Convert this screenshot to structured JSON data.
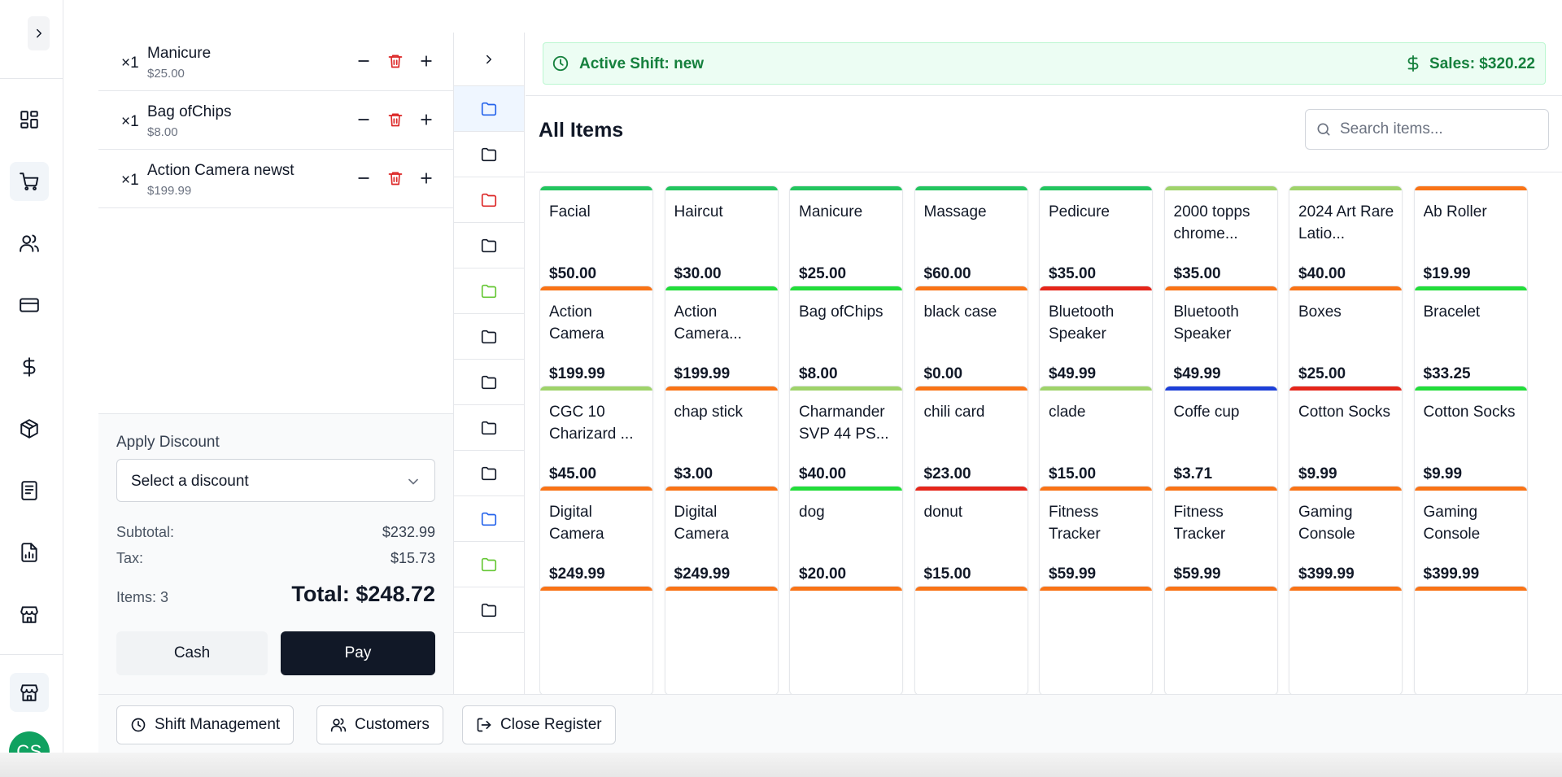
{
  "colors": {
    "accent_dark": "#111827",
    "shift_green": "#15803d",
    "avatar_green": "#10a160",
    "delete_red": "#dc2626"
  },
  "nav": {
    "items": [
      {
        "icon": "dashboard-icon"
      },
      {
        "icon": "shopping-cart-icon",
        "active": true
      },
      {
        "icon": "users-icon"
      },
      {
        "icon": "credit-card-icon"
      },
      {
        "icon": "dollar-icon"
      },
      {
        "icon": "package-icon"
      },
      {
        "icon": "document-icon"
      },
      {
        "icon": "report-icon"
      },
      {
        "icon": "store-icon"
      }
    ],
    "store_icon": "store-icon",
    "avatar_initials": "CS"
  },
  "cart": {
    "items": [
      {
        "qty": "×1",
        "name": "Manicure",
        "price": "$25.00"
      },
      {
        "qty": "×1",
        "name": "Bag ofChips",
        "price": "$8.00"
      },
      {
        "qty": "×1",
        "name": "Action Camera newst",
        "price": "$199.99"
      }
    ]
  },
  "summary": {
    "discount_label": "Apply Discount",
    "discount_select": "Select a discount",
    "subtotal_label": "Subtotal:",
    "subtotal_value": "$232.99",
    "tax_label": "Tax:",
    "tax_value": "$15.73",
    "items_label": "Items: 3",
    "total_label": "Total: $248.72",
    "cash_label": "Cash",
    "pay_label": "Pay"
  },
  "folders": [
    {
      "color": "#2563eb",
      "active": true
    },
    {
      "color": "#111827"
    },
    {
      "color": "#dc2626"
    },
    {
      "color": "#111827"
    },
    {
      "color": "#65c734"
    },
    {
      "color": "#111827"
    },
    {
      "color": "#111827"
    },
    {
      "color": "#111827"
    },
    {
      "color": "#111827"
    },
    {
      "color": "#2563eb"
    },
    {
      "color": "#65c734"
    },
    {
      "color": "#111827"
    }
  ],
  "shift": {
    "active_text": "Active Shift: new",
    "sales_text": "Sales: $320.22"
  },
  "main": {
    "title": "All Items",
    "search_placeholder": "Search items..."
  },
  "products": [
    {
      "name": "Facial",
      "price": "$50.00",
      "color": "#22c55e"
    },
    {
      "name": "Haircut",
      "price": "$30.00",
      "color": "#22c55e"
    },
    {
      "name": "Manicure",
      "price": "$25.00",
      "color": "#22c55e"
    },
    {
      "name": "Massage",
      "price": "$60.00",
      "color": "#22c55e"
    },
    {
      "name": "Pedicure",
      "price": "$35.00",
      "color": "#22c55e"
    },
    {
      "name": "2000 topps chrome...",
      "price": "$35.00",
      "color": "#9fd36a"
    },
    {
      "name": "2024 Art Rare Latio...",
      "price": "$40.00",
      "color": "#9fd36a"
    },
    {
      "name": "Ab Roller",
      "price": "$19.99",
      "color": "#f97316"
    },
    {
      "name": "Action Camera",
      "price": "$199.99",
      "color": "#f97316"
    },
    {
      "name": "Action Camera...",
      "price": "$199.99",
      "color": "#22dd3a"
    },
    {
      "name": "Bag ofChips",
      "price": "$8.00",
      "color": "#22dd3a"
    },
    {
      "name": "black case",
      "price": "$0.00",
      "color": "#f97316"
    },
    {
      "name": "Bluetooth Speaker",
      "price": "$49.99",
      "color": "#e5261a"
    },
    {
      "name": "Bluetooth Speaker",
      "price": "$49.99",
      "color": "#f97316"
    },
    {
      "name": "Boxes",
      "price": "$25.00",
      "color": "#f97316"
    },
    {
      "name": "Bracelet",
      "price": "$33.25",
      "color": "#22dd3a"
    },
    {
      "name": "CGC 10 Charizard ...",
      "price": "$45.00",
      "color": "#9fd36a"
    },
    {
      "name": "chap stick",
      "price": "$3.00",
      "color": "#f97316"
    },
    {
      "name": "Charmander SVP 44 PS...",
      "price": "$40.00",
      "color": "#9fd36a"
    },
    {
      "name": "chili card",
      "price": "$23.00",
      "color": "#f97316"
    },
    {
      "name": "clade",
      "price": "$15.00",
      "color": "#9fd36a"
    },
    {
      "name": "Coffe cup",
      "price": "$3.71",
      "color": "#1d3fd8"
    },
    {
      "name": "Cotton Socks",
      "price": "$9.99",
      "color": "#e5261a"
    },
    {
      "name": "Cotton Socks",
      "price": "$9.99",
      "color": "#22dd3a"
    },
    {
      "name": "Digital Camera",
      "price": "$249.99",
      "color": "#f97316"
    },
    {
      "name": "Digital Camera",
      "price": "$249.99",
      "color": "#f97316"
    },
    {
      "name": "dog",
      "price": "$20.00",
      "color": "#22dd3a"
    },
    {
      "name": "donut",
      "price": "$15.00",
      "color": "#e5261a"
    },
    {
      "name": "Fitness Tracker",
      "price": "$59.99",
      "color": "#f97316"
    },
    {
      "name": "Fitness Tracker",
      "price": "$59.99",
      "color": "#f97316"
    },
    {
      "name": "Gaming Console",
      "price": "$399.99",
      "color": "#f97316"
    },
    {
      "name": "Gaming Console",
      "price": "$399.99",
      "color": "#f97316"
    },
    {
      "name": "",
      "price": "",
      "color": "#f97316"
    },
    {
      "name": "",
      "price": "",
      "color": "#f97316"
    },
    {
      "name": "",
      "price": "",
      "color": "#f97316"
    },
    {
      "name": "",
      "price": "",
      "color": "#f97316"
    },
    {
      "name": "",
      "price": "",
      "color": "#f97316"
    },
    {
      "name": "",
      "price": "",
      "color": "#f97316"
    },
    {
      "name": "",
      "price": "",
      "color": "#f97316"
    },
    {
      "name": "",
      "price": "",
      "color": "#f97316"
    }
  ],
  "footer": {
    "shift_label": "Shift Management",
    "customers_label": "Customers",
    "close_label": "Close Register"
  }
}
